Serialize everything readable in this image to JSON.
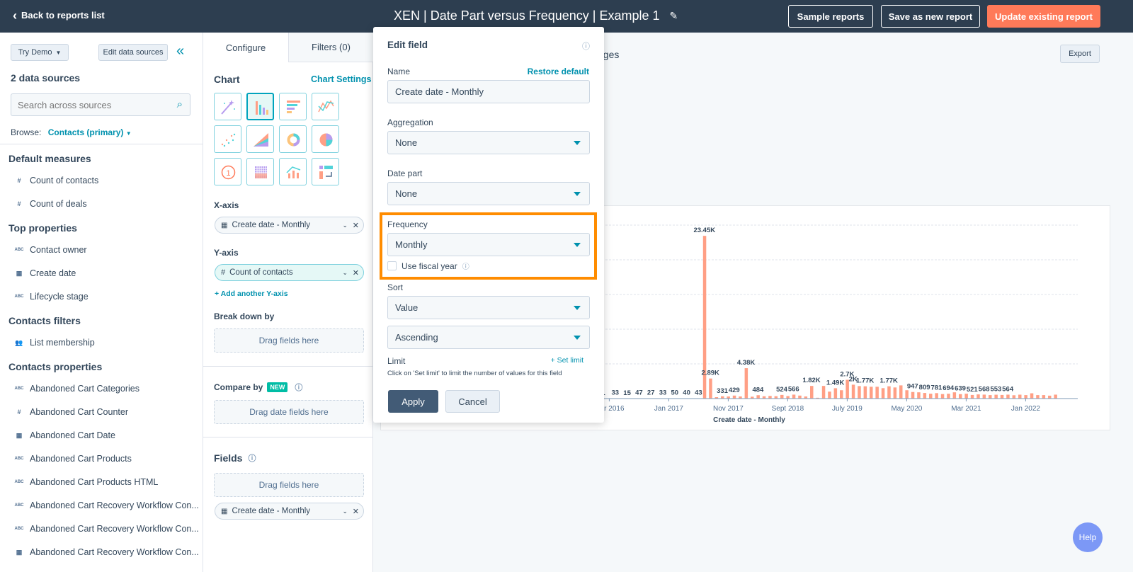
{
  "topbar": {
    "back": "Back to reports list",
    "title": "XEN | Date Part versus Frequency | Example 1",
    "sample": "Sample reports",
    "save_new": "Save as new report",
    "update": "Update existing report"
  },
  "colors": {
    "header": "#2d3e50",
    "accent": "#ff7a59",
    "link": "#0091ae",
    "highlight": "#ff8c00",
    "bar": "#ff9f85",
    "help": "#7c98f6"
  },
  "sidebar": {
    "try_demo": "Try Demo",
    "edit_sources": "Edit data sources",
    "sources_count": "2 data sources",
    "search_placeholder": "Search across sources",
    "browse_label": "Browse:",
    "browse_value": "Contacts (primary)",
    "sections": [
      {
        "title": "Default measures",
        "items": [
          {
            "icon": "number-icon",
            "label": "Count of contacts"
          },
          {
            "icon": "number-icon",
            "label": "Count of deals"
          }
        ]
      },
      {
        "title": "Top properties",
        "items": [
          {
            "icon": "text-icon",
            "label": "Contact owner"
          },
          {
            "icon": "calendar-icon",
            "label": "Create date"
          },
          {
            "icon": "text-icon",
            "label": "Lifecycle stage"
          }
        ]
      },
      {
        "title": "Contacts filters",
        "items": [
          {
            "icon": "people-icon",
            "label": "List membership"
          }
        ]
      },
      {
        "title": "Contacts properties",
        "items": [
          {
            "icon": "text-icon",
            "label": "Abandoned Cart Categories"
          },
          {
            "icon": "number-icon",
            "label": "Abandoned Cart Counter"
          },
          {
            "icon": "calendar-icon",
            "label": "Abandoned Cart Date"
          },
          {
            "icon": "text-icon",
            "label": "Abandoned Cart Products"
          },
          {
            "icon": "text-icon",
            "label": "Abandoned Cart Products HTML"
          },
          {
            "icon": "text-icon",
            "label": "Abandoned Cart Recovery Workflow Con..."
          },
          {
            "icon": "text-icon",
            "label": "Abandoned Cart Recovery Workflow Con..."
          },
          {
            "icon": "calendar-icon",
            "label": "Abandoned Cart Recovery Workflow Con..."
          }
        ]
      }
    ]
  },
  "config": {
    "tabs": [
      {
        "label": "Configure",
        "active": true
      },
      {
        "label": "Filters (0)",
        "active": false
      }
    ],
    "chart_label": "Chart",
    "chart_settings": "Chart Settings",
    "chart_types": [
      "magic-wand",
      "vertical-bar",
      "horizontal-bar",
      "line",
      "scatter",
      "area",
      "donut",
      "pie",
      "kpi",
      "pivot-table",
      "combo",
      "summary"
    ],
    "selected_chart": "vertical-bar",
    "xaxis_label": "X-axis",
    "xaxis_value": "Create date - Monthly",
    "yaxis_label": "Y-axis",
    "yaxis_value": "Count of contacts",
    "add_y": "+ Add another Y-axis",
    "breakdown_label": "Break down by",
    "drag": "Drag fields here",
    "compare_label": "Compare by",
    "new_badge": "NEW",
    "drag_date": "Drag date fields here",
    "fields_label": "Fields",
    "field_value": "Create date - Monthly"
  },
  "modal": {
    "title": "Edit field",
    "name_label": "Name",
    "restore": "Restore default",
    "name_value": "Create date - Monthly",
    "aggregation_label": "Aggregation",
    "aggregation": "None",
    "datepart_label": "Date part",
    "datepart": "None",
    "frequency_label": "Frequency",
    "frequency": "Monthly",
    "fiscal": "Use fiscal year",
    "fiscal_checked": false,
    "sort_label": "Sort",
    "sort": "Value",
    "order": "Ascending",
    "limit_label": "Limit",
    "set_limit": "+ Set limit",
    "limit_help": "Click on 'Set limit' to limit the number of values for this field",
    "apply": "Apply",
    "cancel": "Cancel"
  },
  "main": {
    "header_partial": "nges",
    "export": "Export",
    "help": "Help"
  },
  "chart_data": {
    "type": "bar",
    "xlabel": "Create date - Monthly",
    "ylim": [
      0,
      25000
    ],
    "grid": true,
    "x_ticks": [
      "Mar 2016",
      "Jan 2017",
      "Nov 2017",
      "Sept 2018",
      "July 2019",
      "May 2020",
      "Mar 2021",
      "Jan 2022"
    ],
    "values": [
      1,
      0,
      33,
      10,
      15,
      20,
      47,
      30,
      27,
      25,
      33,
      30,
      50,
      35,
      40,
      38,
      43,
      23450,
      2890,
      200,
      331,
      300,
      429,
      300,
      4380,
      270,
      484,
      330,
      380,
      340,
      524,
      360,
      566,
      430,
      300,
      1820,
      120,
      1820,
      1000,
      1490,
      1200,
      2700,
      2000,
      1800,
      1770,
      1700,
      1700,
      1500,
      1770,
      1600,
      1900,
      1200,
      947,
      900,
      809,
      700,
      781,
      650,
      694,
      900,
      639,
      700,
      521,
      600,
      568,
      500,
      553,
      520,
      564,
      480,
      560,
      500,
      760,
      500,
      500,
      420,
      564
    ],
    "labels": [
      "1",
      "",
      "33",
      "",
      "15",
      "",
      "47",
      "",
      "27",
      "",
      "33",
      "",
      "50",
      "",
      "40",
      "",
      "43",
      "23.45K",
      "2.89K",
      "",
      "331",
      "",
      "429",
      "",
      "4.38K",
      "",
      "484",
      "",
      "",
      "",
      "524",
      "",
      "566",
      "",
      "",
      "1.82K",
      "",
      "",
      "",
      "1.49K",
      "",
      "2.7K",
      "2K",
      "",
      "1.77K",
      "",
      "",
      "",
      "1.77K",
      "",
      "",
      "",
      "947",
      "",
      "809",
      "",
      "781",
      "",
      "694",
      "",
      "639",
      "",
      "521",
      "",
      "568",
      "",
      "553",
      "",
      "564",
      "",
      "",
      "",
      "",
      "",
      "",
      "",
      ""
    ]
  }
}
